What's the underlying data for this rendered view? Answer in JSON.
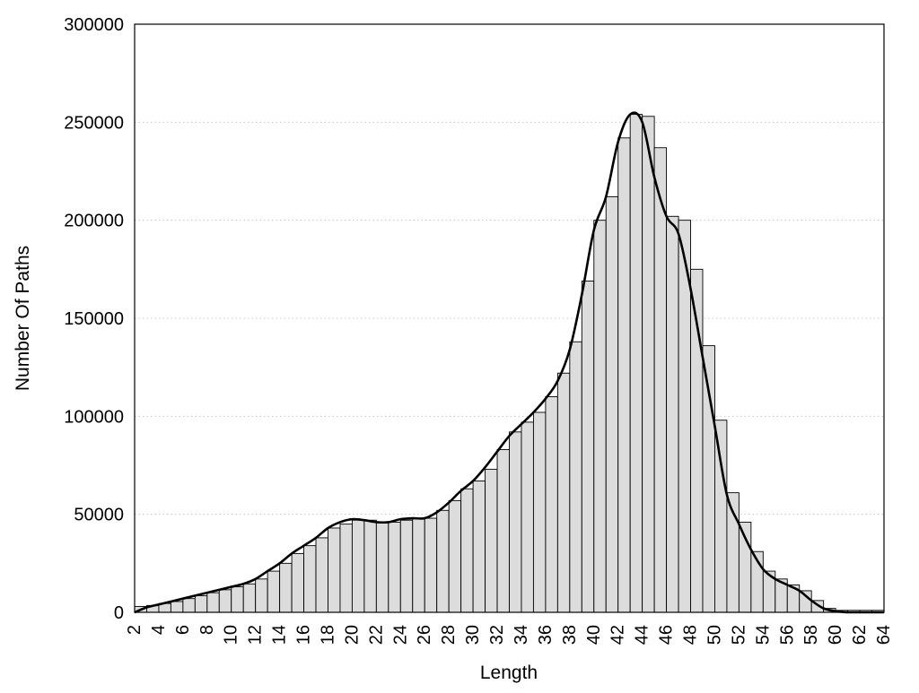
{
  "chart_data": {
    "type": "bar",
    "xlabel": "Length",
    "ylabel": "Number Of Paths",
    "ylim": [
      0,
      300000
    ],
    "y_ticks": [
      "0",
      "50000",
      "100000",
      "150000",
      "200000",
      "250000",
      "300000"
    ],
    "x_ticks": [
      "2",
      "4",
      "6",
      "8",
      "10",
      "12",
      "14",
      "16",
      "18",
      "20",
      "22",
      "24",
      "26",
      "28",
      "30",
      "32",
      "34",
      "36",
      "38",
      "40",
      "42",
      "44",
      "46",
      "48",
      "50",
      "52",
      "54",
      "56",
      "58",
      "60",
      "62",
      "64"
    ],
    "grid": "horizontal dotted",
    "categories": [
      2,
      3,
      4,
      5,
      6,
      7,
      8,
      9,
      10,
      11,
      12,
      13,
      14,
      15,
      16,
      17,
      18,
      19,
      20,
      21,
      22,
      23,
      24,
      25,
      26,
      27,
      28,
      29,
      30,
      31,
      32,
      33,
      34,
      35,
      36,
      37,
      38,
      39,
      40,
      41,
      42,
      43,
      44,
      45,
      46,
      47,
      48,
      49,
      50,
      51,
      52,
      53,
      54,
      55,
      56,
      57,
      58,
      59,
      60,
      61,
      62,
      63
    ],
    "values": [
      3000,
      3500,
      4500,
      5500,
      7000,
      8500,
      10000,
      11500,
      13000,
      14500,
      17000,
      21000,
      25000,
      30000,
      34000,
      38000,
      43000,
      45000,
      47000,
      47000,
      46000,
      46000,
      47000,
      48000,
      48000,
      52000,
      57000,
      63000,
      67000,
      73000,
      83000,
      92000,
      97000,
      102000,
      110000,
      122000,
      138000,
      169000,
      200000,
      212000,
      242000,
      254000,
      253000,
      237000,
      202000,
      200000,
      175000,
      136000,
      98000,
      61000,
      46000,
      31000,
      21000,
      17000,
      14000,
      11000,
      6000,
      2000,
      1000,
      1000,
      1000,
      1000
    ],
    "series": [
      {
        "name": "",
        "type": "line",
        "x": [
          2,
          3,
          4,
          5,
          6,
          7,
          8,
          9,
          10,
          11,
          12,
          13,
          14,
          15,
          16,
          17,
          18,
          19,
          20,
          21,
          22,
          23,
          24,
          25,
          26,
          27,
          28,
          29,
          30,
          31,
          32,
          33,
          34,
          35,
          36,
          37,
          38,
          39,
          40,
          41,
          42,
          43,
          44,
          45,
          46,
          47,
          48,
          49,
          50,
          51,
          52,
          53,
          54,
          55,
          56,
          57,
          58,
          59,
          60,
          61,
          62,
          63,
          64
        ],
        "y": [
          0,
          2500,
          4000,
          5500,
          7000,
          8500,
          10000,
          11500,
          13000,
          14500,
          17000,
          21000,
          25000,
          30000,
          34000,
          38000,
          43000,
          46000,
          47500,
          47000,
          46000,
          46000,
          47500,
          48000,
          48000,
          51000,
          56000,
          62000,
          67000,
          74000,
          82000,
          90000,
          96000,
          102000,
          109000,
          118000,
          134000,
          162000,
          195000,
          212000,
          240000,
          254000,
          250000,
          222000,
          202000,
          193000,
          165000,
          130000,
          95000,
          60000,
          45000,
          32000,
          22000,
          17000,
          14000,
          11000,
          6000,
          2000,
          600,
          0,
          0,
          0,
          0
        ]
      }
    ]
  }
}
